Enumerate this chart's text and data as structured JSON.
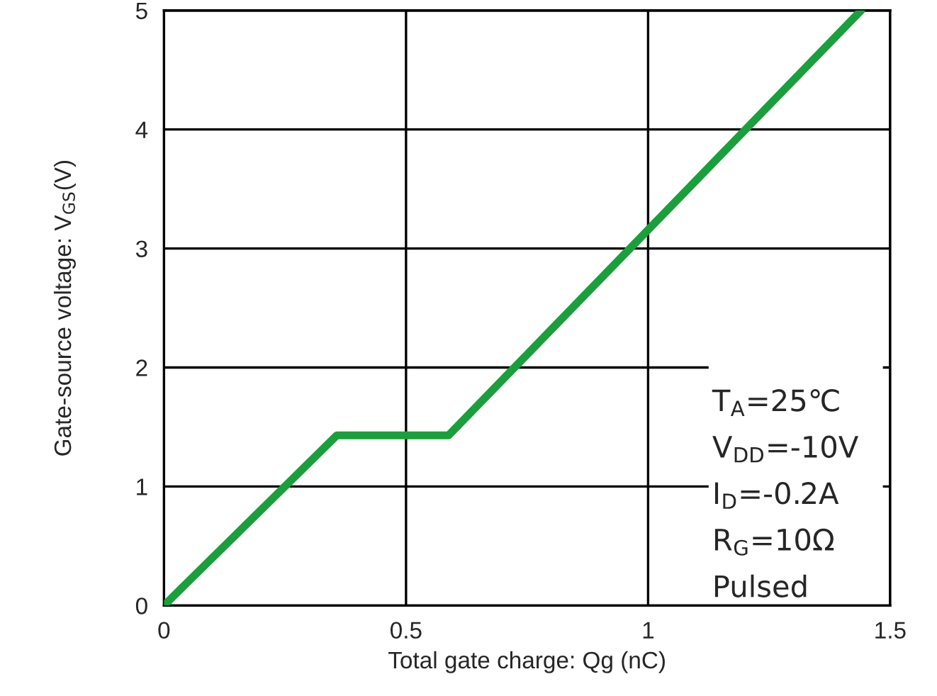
{
  "chart_data": {
    "type": "line",
    "xlabel": "Total gate charge: Qg (nC)",
    "ylabel": "Gate-source voltage: V$_{GS}$(V)",
    "series": [
      {
        "color": "#1a9f3c",
        "x": [
          0,
          0.357,
          0.588,
          1.44
        ],
        "values": [
          0,
          1.43,
          1.43,
          5
        ]
      }
    ],
    "xlim": [
      0,
      1.5
    ],
    "ylim": [
      0,
      5
    ],
    "xticks": [
      0,
      0.5,
      1,
      1.5
    ],
    "yticks": [
      0,
      1,
      2,
      3,
      4,
      5
    ],
    "grid": true,
    "marker": "none",
    "line_style": "solid",
    "annotations": [
      "T$_{A}$=25℃",
      "V$_{DD}$=-10V",
      "I$_{D}$=-0.2A",
      "R$_{G}$=10Ω",
      "Pulsed"
    ]
  }
}
